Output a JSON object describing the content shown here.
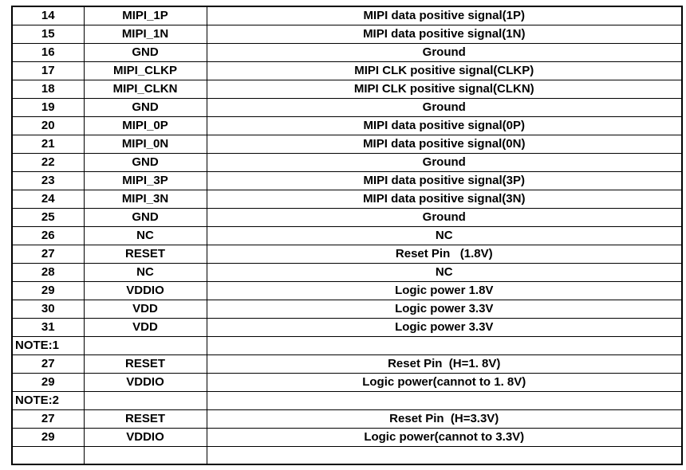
{
  "page": {
    "background_color": "#ffffff",
    "text_color": "#000000",
    "border_color": "#000000"
  },
  "table": {
    "description": "connector pin assignment table (continuation, pins 14-31 with notes)",
    "rows": [
      {
        "pin": "14",
        "signal": "MIPI_1P",
        "desc": "MIPI data positive signal(1P)",
        "note": false
      },
      {
        "pin": "15",
        "signal": "MIPI_1N",
        "desc": "MIPI data positive signal(1N)",
        "note": false
      },
      {
        "pin": "16",
        "signal": "GND",
        "desc": "Ground",
        "note": false
      },
      {
        "pin": "17",
        "signal": "MIPI_CLKP",
        "desc": "MIPI CLK positive signal(CLKP)",
        "note": false
      },
      {
        "pin": "18",
        "signal": "MIPI_CLKN",
        "desc": "MIPI CLK positive signal(CLKN)",
        "note": false
      },
      {
        "pin": "19",
        "signal": "GND",
        "desc": "Ground",
        "note": false
      },
      {
        "pin": "20",
        "signal": "MIPI_0P",
        "desc": "MIPI data positive signal(0P)",
        "note": false
      },
      {
        "pin": "21",
        "signal": "MIPI_0N",
        "desc": "MIPI data positive signal(0N)",
        "note": false
      },
      {
        "pin": "22",
        "signal": "GND",
        "desc": "Ground",
        "note": false
      },
      {
        "pin": "23",
        "signal": "MIPI_3P",
        "desc": "MIPI data positive signal(3P)",
        "note": false
      },
      {
        "pin": "24",
        "signal": "MIPI_3N",
        "desc": "MIPI data positive signal(3N)",
        "note": false
      },
      {
        "pin": "25",
        "signal": "GND",
        "desc": "Ground",
        "note": false
      },
      {
        "pin": "26",
        "signal": "NC",
        "desc": "NC",
        "note": false
      },
      {
        "pin": "27",
        "signal": "RESET",
        "desc": "Reset Pin   (1.8V)",
        "note": false
      },
      {
        "pin": "28",
        "signal": "NC",
        "desc": "NC",
        "note": false
      },
      {
        "pin": "29",
        "signal": "VDDIO",
        "desc": "Logic power 1.8V",
        "note": false
      },
      {
        "pin": "30",
        "signal": "VDD",
        "desc": "Logic power 3.3V",
        "note": false
      },
      {
        "pin": "31",
        "signal": "VDD",
        "desc": "Logic power 3.3V",
        "note": false
      },
      {
        "pin": "NOTE:1",
        "signal": "",
        "desc": "",
        "note": true
      },
      {
        "pin": "27",
        "signal": "RESET",
        "desc": "Reset Pin  (H=1. 8V)",
        "note": false
      },
      {
        "pin": "29",
        "signal": "VDDIO",
        "desc": "Logic power(cannot to 1. 8V)",
        "note": false
      },
      {
        "pin": "NOTE:2",
        "signal": "",
        "desc": "",
        "note": true
      },
      {
        "pin": "27",
        "signal": "RESET",
        "desc": "Reset Pin  (H=3.3V)",
        "note": false
      },
      {
        "pin": "29",
        "signal": "VDDIO",
        "desc": "Logic power(cannot to 3.3V)",
        "note": false
      },
      {
        "pin": "",
        "signal": "",
        "desc": "",
        "note": false
      }
    ]
  }
}
